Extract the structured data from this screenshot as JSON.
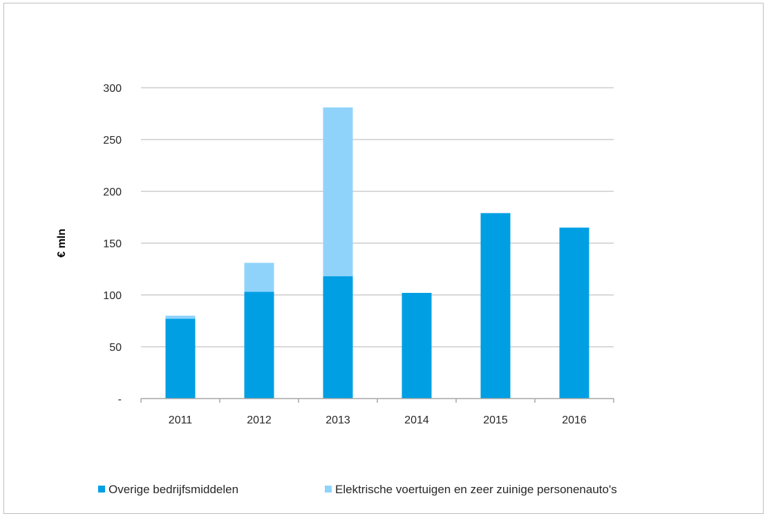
{
  "chart_data": {
    "type": "bar",
    "stacked": true,
    "categories": [
      "2011",
      "2012",
      "2013",
      "2014",
      "2015",
      "2016"
    ],
    "series": [
      {
        "name": "Overige bedrijfsmiddelen",
        "color": "#009fe3",
        "values": [
          77,
          103,
          118,
          102,
          179,
          165
        ]
      },
      {
        "name": "Elektrische voertuigen en zeer zuinige personenauto's",
        "color": "#8fd3fb",
        "values": [
          3,
          28,
          163,
          0,
          0,
          0
        ]
      }
    ],
    "ylabel": "€ mln",
    "ylim": [
      0,
      300
    ],
    "yticks": [
      {
        "value": 0,
        "label": "-"
      },
      {
        "value": 50,
        "label": "50"
      },
      {
        "value": 100,
        "label": "100"
      },
      {
        "value": 150,
        "label": "150"
      },
      {
        "value": 200,
        "label": "200"
      },
      {
        "value": 250,
        "label": "250"
      },
      {
        "value": 300,
        "label": "300"
      }
    ],
    "grid": true,
    "legend_position": "bottom"
  }
}
